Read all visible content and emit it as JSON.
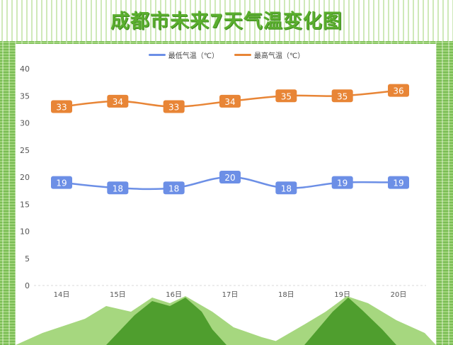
{
  "title": "成都市未来7天气温变化图",
  "chart_data": {
    "type": "line",
    "categories": [
      "14日",
      "15日",
      "16日",
      "17日",
      "18日",
      "19日",
      "20日"
    ],
    "series": [
      {
        "name": "最低气温（℃）",
        "values": [
          19,
          18,
          18,
          20,
          18,
          19,
          19
        ],
        "color": "#6c8fe6"
      },
      {
        "name": "最高气温（℃）",
        "values": [
          33,
          34,
          33,
          34,
          35,
          35,
          36
        ],
        "color": "#e88536"
      }
    ],
    "ylim": [
      0,
      40
    ],
    "yticks": [
      0,
      5,
      10,
      15,
      20,
      25,
      30,
      35,
      40
    ],
    "legend": "top-center",
    "grid": false,
    "data_labels": true
  },
  "colors": {
    "background": "#8fcd63",
    "title": "#5aae2e",
    "mountain_light": "#a6d77f",
    "mountain_dark": "#4f9e2e"
  }
}
